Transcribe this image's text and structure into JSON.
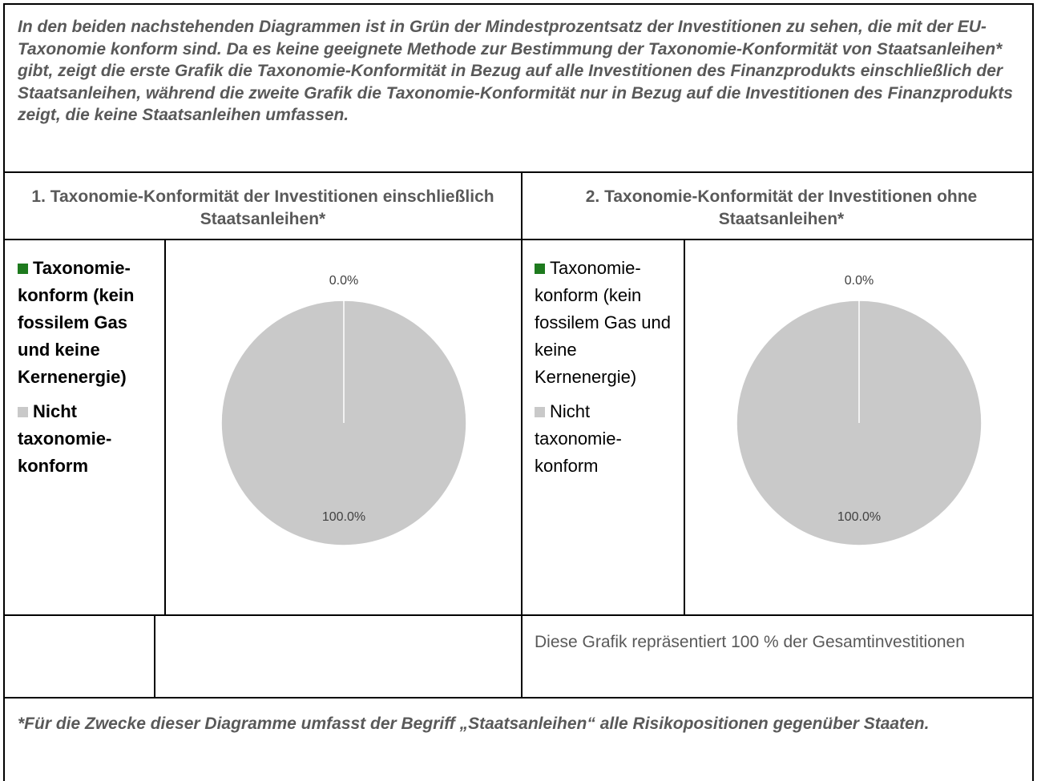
{
  "intro": "In den beiden nachstehenden Diagrammen ist in Grün der Mindestprozentsatz der Investitionen zu sehen, die mit der EU-Taxonomie konform sind. Da es keine geeignete Methode zur Bestimmung der Taxonomie-Konformität von Staatsanleihen* gibt, zeigt die erste Grafik die Taxonomie-Konformität in Bezug auf alle Investitionen des Finanzprodukts einschließlich der Staatsanleihen, während die zweite Grafik die Taxonomie-Konformität nur in Bezug auf die Investitionen des Finanzprodukts zeigt, die keine Staatsanleihen umfassen.",
  "panels": [
    {
      "heading": "1. Taxonomie-Konformität der Investitionen einschließlich Staatsanleihen*"
    },
    {
      "heading": "2. Taxonomie-Konformität der Investitionen ohne Staatsanleihen*"
    }
  ],
  "chart_data": [
    {
      "type": "pie",
      "categories": [
        "Taxonomie-konform (kein fossilem Gas und keine Kernenergie)",
        "Nicht taxonomie-konform"
      ],
      "values": [
        0.0,
        100.0
      ],
      "value_labels": [
        "0.0%",
        "100.0%"
      ],
      "colors": [
        "#1e7a1e",
        "#c9c9c9"
      ]
    },
    {
      "type": "pie",
      "categories": [
        "Taxonomie-konform (kein fossilem Gas und keine Kernenergie)",
        "Nicht taxonomie-konform"
      ],
      "values": [
        0.0,
        100.0
      ],
      "value_labels": [
        "0.0%",
        "100.0%"
      ],
      "colors": [
        "#1e7a1e",
        "#c9c9c9"
      ]
    }
  ],
  "note": "Diese Grafik repräsentiert 100 % der Gesamtinvestitionen",
  "footnote": "*Für die Zwecke dieser Diagramme umfasst der Begriff „Staatsanleihen“ alle Risikopositionen gegenüber Staaten."
}
